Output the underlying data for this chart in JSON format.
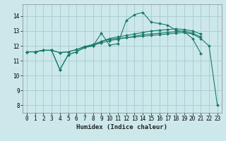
{
  "xlabel": "Humidex (Indice chaleur)",
  "background_color": "#cce8ea",
  "grid_color": "#aacfd2",
  "line_color": "#1a7a6a",
  "xlim": [
    -0.5,
    23.5
  ],
  "ylim": [
    7.5,
    14.8
  ],
  "xticks": [
    0,
    1,
    2,
    3,
    4,
    5,
    6,
    7,
    8,
    9,
    10,
    11,
    12,
    13,
    14,
    15,
    16,
    17,
    18,
    19,
    20,
    21,
    22,
    23
  ],
  "yticks": [
    8,
    9,
    10,
    11,
    12,
    13,
    14
  ],
  "lines": [
    {
      "x": [
        0,
        1,
        2,
        3,
        4,
        5,
        6,
        7,
        8,
        9,
        10,
        11,
        12,
        13,
        14,
        15,
        16,
        17,
        18,
        19,
        20,
        21
      ],
      "y": [
        11.6,
        11.6,
        11.7,
        11.7,
        10.4,
        11.4,
        11.6,
        11.9,
        12.0,
        12.85,
        12.05,
        12.15,
        13.7,
        14.1,
        14.25,
        13.6,
        13.5,
        13.4,
        13.05,
        12.95,
        12.5,
        11.5
      ]
    },
    {
      "x": [
        0,
        1,
        2,
        3,
        4,
        5,
        6,
        7,
        8,
        9,
        10,
        11,
        12,
        13,
        14,
        15,
        16,
        17,
        18,
        19,
        20,
        21,
        22,
        23
      ],
      "y": [
        11.6,
        11.6,
        11.7,
        11.7,
        10.4,
        11.4,
        11.6,
        11.9,
        12.0,
        12.3,
        12.45,
        12.5,
        12.55,
        12.6,
        12.65,
        12.7,
        12.75,
        12.8,
        12.85,
        12.9,
        12.8,
        12.5,
        12.0,
        8.0
      ]
    },
    {
      "x": [
        0,
        1,
        2,
        3,
        4,
        5,
        6,
        7,
        8,
        9,
        10,
        11,
        12,
        13,
        14,
        15,
        16,
        17,
        18,
        19,
        20,
        21
      ],
      "y": [
        11.6,
        11.6,
        11.7,
        11.7,
        11.55,
        11.6,
        11.75,
        11.95,
        12.05,
        12.2,
        12.35,
        12.45,
        12.55,
        12.65,
        12.75,
        12.8,
        12.85,
        12.9,
        12.95,
        13.0,
        12.85,
        12.6
      ]
    },
    {
      "x": [
        0,
        1,
        2,
        3,
        4,
        5,
        6,
        7,
        8,
        9,
        10,
        11,
        12,
        13,
        14,
        15,
        16,
        17,
        18,
        19,
        20,
        21
      ],
      "y": [
        11.6,
        11.6,
        11.7,
        11.7,
        11.55,
        11.6,
        11.75,
        11.95,
        12.1,
        12.3,
        12.5,
        12.6,
        12.7,
        12.8,
        12.9,
        13.0,
        13.05,
        13.1,
        13.15,
        13.1,
        13.0,
        12.8
      ]
    }
  ]
}
